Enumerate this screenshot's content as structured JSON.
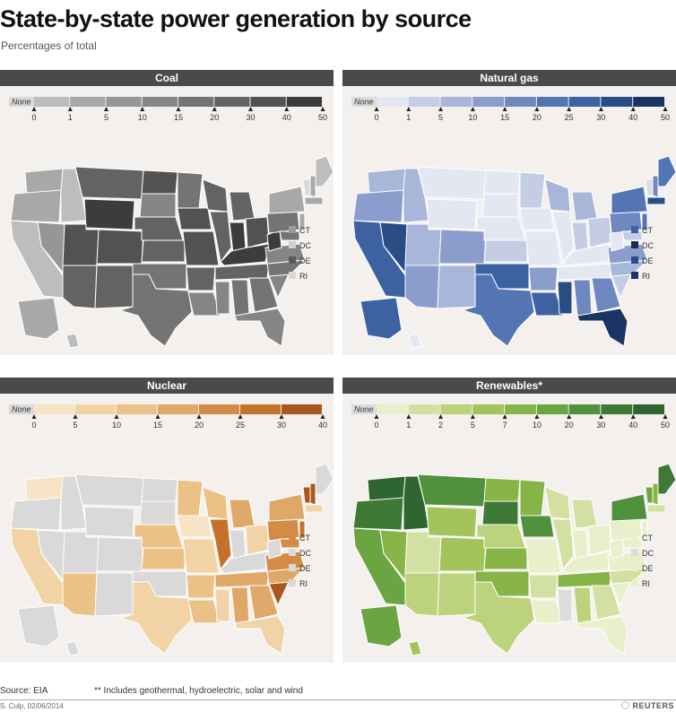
{
  "title": "State-by-state power generation by source",
  "subtitle": "Percentages of total",
  "footer": {
    "source": "Source: EIA",
    "note": "** Includes geothermal, hydroelectric, solar and wind",
    "credit": "S. Culp, 02/06/2014",
    "brand": "REUTERS"
  },
  "small_states": [
    "CT",
    "DC",
    "DE",
    "RI"
  ],
  "panels": [
    {
      "title": "Coal",
      "none_label": "None",
      "none_color": "#d9d9d9",
      "ticks": [
        "0",
        "1",
        "5",
        "10",
        "15",
        "20",
        "30",
        "40",
        "50"
      ],
      "colors": [
        "#bdbdbd",
        "#a8a8a8",
        "#969696",
        "#858585",
        "#747474",
        "#636363",
        "#525252",
        "#3c3c3c"
      ],
      "small_state_colors": [
        "#9a9a9a",
        "#cfcfcf",
        "#5a5a5a",
        "#d9d9d9"
      ]
    },
    {
      "title": "Natural gas",
      "none_label": "None",
      "none_color": "#dcdcdc",
      "ticks": [
        "0",
        "1",
        "5",
        "10",
        "15",
        "20",
        "25",
        "30",
        "40",
        "50"
      ],
      "colors": [
        "#e3e7f1",
        "#c5cde5",
        "#a8b6d9",
        "#8a9dcc",
        "#6f88c0",
        "#5475b3",
        "#3d62a1",
        "#2b4d86",
        "#1a3563"
      ],
      "small_state_colors": [
        "#3d62a1",
        "#1a2c4d",
        "#2b4d86",
        "#1a3563"
      ]
    },
    {
      "title": "Nuclear",
      "none_label": "None",
      "none_color": "#d9d9d9",
      "ticks": [
        "0",
        "5",
        "10",
        "15",
        "20",
        "25",
        "30",
        "40"
      ],
      "colors": [
        "#f7e4c6",
        "#f2d3a6",
        "#ecc187",
        "#e0a868",
        "#d38c45",
        "#c4722b",
        "#a8581c"
      ],
      "small_state_colors": [
        "#d38c45",
        "#d9d9d9",
        "#d9d9d9",
        "#d9d9d9"
      ]
    },
    {
      "title": "Renewables*",
      "none_label": "None",
      "none_color": "#dcdcdc",
      "ticks": [
        "0",
        "1",
        "2",
        "5",
        "7",
        "10",
        "20",
        "30",
        "40",
        "50"
      ],
      "colors": [
        "#eaefcb",
        "#d2e0a1",
        "#bcd27b",
        "#a3c45a",
        "#87b446",
        "#6ba541",
        "#4f913d",
        "#3e7a35",
        "#2f6530"
      ],
      "small_state_colors": [
        "#eaefcb",
        "#dcdcdc",
        "#eaefcb",
        "#eaefcb"
      ]
    }
  ]
}
